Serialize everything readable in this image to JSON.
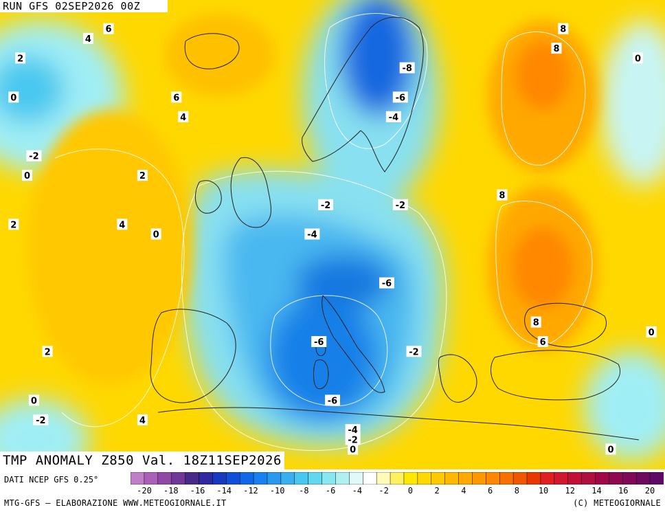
{
  "header": {
    "run": "RUN GFS 02SEP2026 00Z"
  },
  "title": {
    "product": "TMP ANOMALY Z850 Val. 18Z11SEP2026"
  },
  "footer": {
    "data_source": "DATI NCEP GFS 0.25°",
    "credit_left": "MTG-GFS — ELABORAZIONE WWW.METEOGIORNALE.IT",
    "credit_right": "(C) METEOGIORNALE"
  },
  "colorbar": {
    "ticks": [
      "-20",
      "-18",
      "-16",
      "-14",
      "-12",
      "-10",
      "-8",
      "-6",
      "-4",
      "-2",
      "0",
      "2",
      "4",
      "6",
      "8",
      "10",
      "12",
      "14",
      "16",
      "20"
    ],
    "colors": [
      "#c07ec8",
      "#a860b8",
      "#9048a8",
      "#703898",
      "#482888",
      "#3028a0",
      "#1838c0",
      "#1050d8",
      "#1068e8",
      "#1880f0",
      "#2898f0",
      "#38b0f0",
      "#48c8f0",
      "#60d8f0",
      "#88e8f0",
      "#b0f0f0",
      "#e0fafa",
      "#ffffff",
      "#fffab8",
      "#fff060",
      "#ffe800",
      "#ffd800",
      "#ffc800",
      "#ffb800",
      "#ffa800",
      "#ff9800",
      "#ff8800",
      "#f87000",
      "#f05800",
      "#e83800",
      "#e02020",
      "#d01830",
      "#c01038",
      "#b01040",
      "#a00848",
      "#900850",
      "#800858",
      "#700860",
      "#600868"
    ]
  },
  "contour_labels": [
    {
      "text": "4",
      "lon": -30,
      "lat": 68
    },
    {
      "text": "6",
      "lon": -27,
      "lat": 69
    },
    {
      "text": "2",
      "lon": -40,
      "lat": 66
    },
    {
      "text": "0",
      "lon": -41,
      "lat": 62
    },
    {
      "text": "6",
      "lon": -17,
      "lat": 62
    },
    {
      "text": "4",
      "lon": -16,
      "lat": 60
    },
    {
      "text": "-2",
      "lon": -38,
      "lat": 56
    },
    {
      "text": "0",
      "lon": -39,
      "lat": 54
    },
    {
      "text": "2",
      "lon": -22,
      "lat": 54
    },
    {
      "text": "2",
      "lon": -41,
      "lat": 49
    },
    {
      "text": "4",
      "lon": -25,
      "lat": 49
    },
    {
      "text": "0",
      "lon": -20,
      "lat": 48
    },
    {
      "text": "-8",
      "lon": 17,
      "lat": 65
    },
    {
      "text": "-6",
      "lon": 16,
      "lat": 62
    },
    {
      "text": "-4",
      "lon": 15,
      "lat": 60
    },
    {
      "text": "-2",
      "lon": 5,
      "lat": 51
    },
    {
      "text": "-2",
      "lon": 16,
      "lat": 51
    },
    {
      "text": "-4",
      "lon": 3,
      "lat": 48
    },
    {
      "text": "-6",
      "lon": 14,
      "lat": 43
    },
    {
      "text": "-6",
      "lon": 4,
      "lat": 37
    },
    {
      "text": "-2",
      "lon": 18,
      "lat": 36
    },
    {
      "text": "-6",
      "lon": 6,
      "lat": 31
    },
    {
      "text": "-4",
      "lon": 9,
      "lat": 28
    },
    {
      "text": "-2",
      "lon": 9,
      "lat": 27
    },
    {
      "text": "0",
      "lon": 9,
      "lat": 26
    },
    {
      "text": "2",
      "lon": -36,
      "lat": 36
    },
    {
      "text": "0",
      "lon": -38,
      "lat": 31
    },
    {
      "text": "-2",
      "lon": -37,
      "lat": 29
    },
    {
      "text": "4",
      "lon": -22,
      "lat": 29
    },
    {
      "text": "8",
      "lon": 40,
      "lat": 69
    },
    {
      "text": "8",
      "lon": 39,
      "lat": 67
    },
    {
      "text": "0",
      "lon": 51,
      "lat": 66
    },
    {
      "text": "8",
      "lon": 31,
      "lat": 52
    },
    {
      "text": "8",
      "lon": 36,
      "lat": 39
    },
    {
      "text": "6",
      "lon": 37,
      "lat": 37
    },
    {
      "text": "0",
      "lon": 53,
      "lat": 38
    },
    {
      "text": "0",
      "lon": 47,
      "lat": 26
    }
  ]
}
